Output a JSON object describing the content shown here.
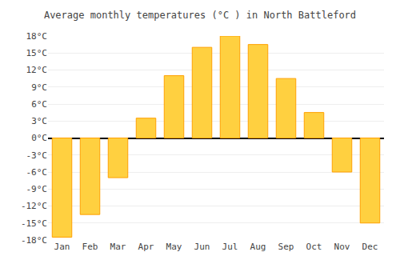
{
  "chart_data": {
    "type": "bar",
    "title": "Average monthly temperatures (°C ) in North Battleford",
    "categories": [
      "Jan",
      "Feb",
      "Mar",
      "Apr",
      "May",
      "Jun",
      "Jul",
      "Aug",
      "Sep",
      "Oct",
      "Nov",
      "Dec"
    ],
    "values": [
      -17.5,
      -13.5,
      -7.0,
      3.5,
      11.0,
      16.0,
      18.0,
      16.5,
      10.5,
      4.5,
      -6.0,
      -15.0
    ],
    "color": "#FFD040",
    "ylim": [
      -18,
      18
    ],
    "yticks": [
      {
        "value": -18,
        "label": "-18°C"
      },
      {
        "value": -15,
        "label": "-15°C"
      },
      {
        "value": -12,
        "label": "-12°C"
      },
      {
        "value": -9,
        "label": "-9°C"
      },
      {
        "value": -6,
        "label": "-6°C"
      },
      {
        "value": -3,
        "label": "-3°C"
      },
      {
        "value": 0,
        "label": "0°C"
      },
      {
        "value": 3,
        "label": "3°C"
      },
      {
        "value": 6,
        "label": "6°C"
      },
      {
        "value": 9,
        "label": "9°C"
      },
      {
        "value": 12,
        "label": "12°C"
      },
      {
        "value": 15,
        "label": "15°C"
      },
      {
        "value": 18,
        "label": "18°C"
      }
    ],
    "grid": true
  }
}
